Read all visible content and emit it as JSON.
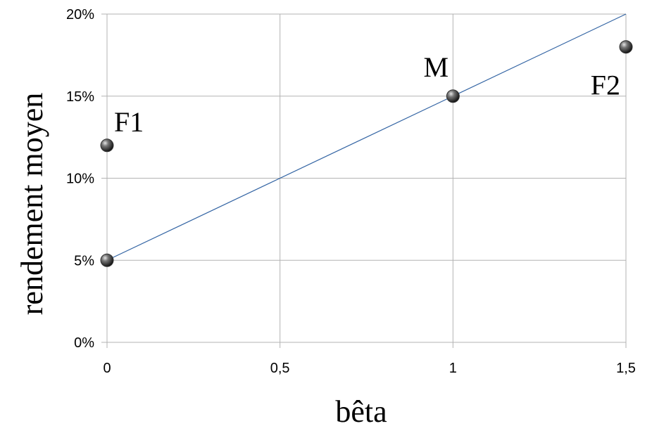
{
  "chart_data": {
    "type": "scatter",
    "title": "",
    "xlabel": "bêta",
    "ylabel": "rendement moyen",
    "xlim": [
      0,
      1.5
    ],
    "ylim": [
      0,
      20
    ],
    "x_ticks": [
      "0",
      "0,5",
      "1",
      "1,5"
    ],
    "y_ticks": [
      "0%",
      "5%",
      "10%",
      "15%",
      "20%"
    ],
    "grid": true,
    "points": [
      {
        "label": "F1",
        "x": 0,
        "y": 12
      },
      {
        "label": "",
        "x": 0,
        "y": 5
      },
      {
        "label": "M",
        "x": 1,
        "y": 15
      },
      {
        "label": "F2",
        "x": 1.5,
        "y": 18
      }
    ],
    "line": {
      "x": [
        0,
        1.5
      ],
      "y": [
        5,
        20
      ],
      "color": "#3465a4"
    },
    "point_color": "#333333"
  }
}
